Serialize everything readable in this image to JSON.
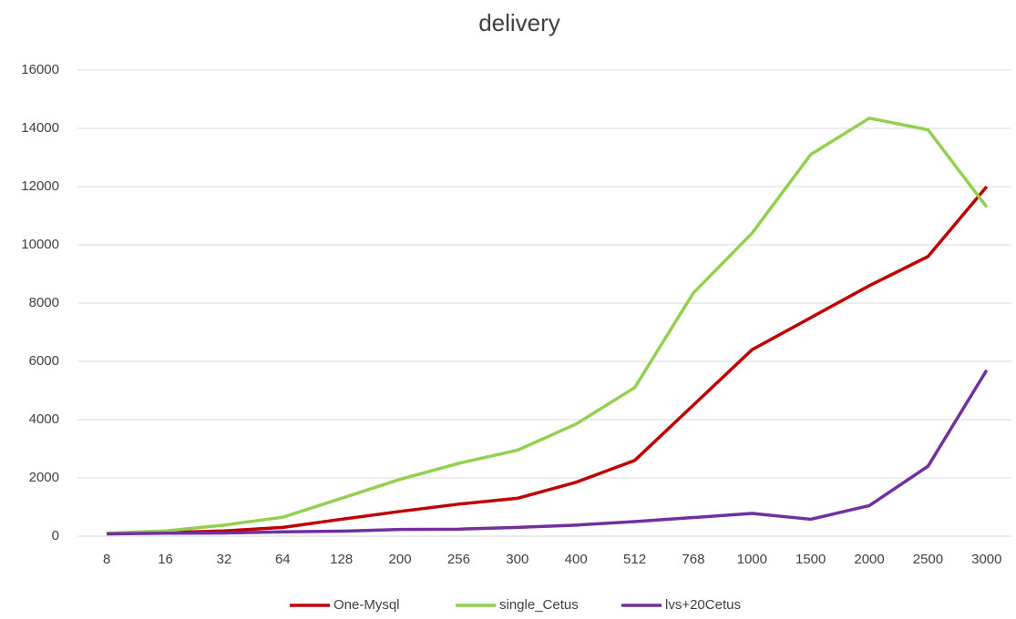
{
  "chart_data": {
    "type": "line",
    "title": "delivery",
    "categories": [
      "8",
      "16",
      "32",
      "64",
      "128",
      "200",
      "256",
      "300",
      "400",
      "512",
      "768",
      "1000",
      "1500",
      "2000",
      "2500",
      "3000"
    ],
    "series": [
      {
        "name": "One-Mysql",
        "color": "#c00000",
        "values": [
          100,
          120,
          180,
          300,
          580,
          850,
          1100,
          1300,
          1850,
          2600,
          4500,
          6400,
          7500,
          8600,
          9600,
          12000
        ]
      },
      {
        "name": "single_Cetus",
        "color": "#92d050",
        "values": [
          100,
          180,
          380,
          650,
          1300,
          1950,
          2500,
          2950,
          3850,
          5100,
          8350,
          10400,
          13100,
          14350,
          13950,
          11300
        ]
      },
      {
        "name": "lvs+20Cetus",
        "color": "#7030a0",
        "values": [
          80,
          100,
          110,
          150,
          170,
          230,
          240,
          300,
          380,
          500,
          640,
          780,
          580,
          1050,
          2400,
          5700
        ]
      }
    ],
    "ylim": [
      0,
      16000
    ],
    "yticks": [
      0,
      2000,
      4000,
      6000,
      8000,
      10000,
      12000,
      14000,
      16000
    ],
    "grid": true,
    "legend": "bottom"
  }
}
